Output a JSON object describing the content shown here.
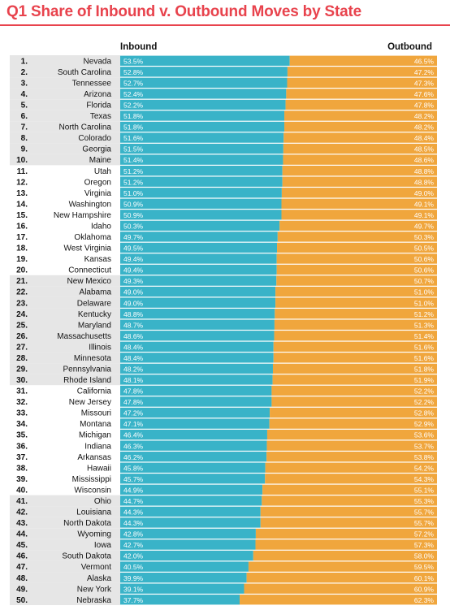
{
  "title": "Q1 Share of Inbound v. Outbound Moves by State",
  "colors": {
    "title": "#e8434d",
    "inbound": "#39b3c8",
    "outbound": "#f0a63d",
    "band": "#e6e6e6"
  },
  "chart_data": {
    "type": "bar",
    "title": "Q1 Share of Inbound v. Outbound Moves by State",
    "orientation": "horizontal-stacked",
    "xlim": [
      0,
      100
    ],
    "legend": "top",
    "series": [
      {
        "name": "Inbound"
      },
      {
        "name": "Outbound"
      }
    ],
    "rows": [
      {
        "rank": "1.",
        "state": "Nevada",
        "inbound": 53.5,
        "outbound": 46.5
      },
      {
        "rank": "2.",
        "state": "South Carolina",
        "inbound": 52.8,
        "outbound": 47.2
      },
      {
        "rank": "3.",
        "state": "Tennessee",
        "inbound": 52.7,
        "outbound": 47.3
      },
      {
        "rank": "4.",
        "state": "Arizona",
        "inbound": 52.4,
        "outbound": 47.6
      },
      {
        "rank": "5.",
        "state": "Florida",
        "inbound": 52.2,
        "outbound": 47.8
      },
      {
        "rank": "6.",
        "state": "Texas",
        "inbound": 51.8,
        "outbound": 48.2
      },
      {
        "rank": "7.",
        "state": "North Carolina",
        "inbound": 51.8,
        "outbound": 48.2
      },
      {
        "rank": "8.",
        "state": "Colorado",
        "inbound": 51.6,
        "outbound": 48.4
      },
      {
        "rank": "9.",
        "state": "Georgia",
        "inbound": 51.5,
        "outbound": 48.5
      },
      {
        "rank": "10.",
        "state": "Maine",
        "inbound": 51.4,
        "outbound": 48.6
      },
      {
        "rank": "11.",
        "state": "Utah",
        "inbound": 51.2,
        "outbound": 48.8
      },
      {
        "rank": "12.",
        "state": "Oregon",
        "inbound": 51.2,
        "outbound": 48.8
      },
      {
        "rank": "13.",
        "state": "Virginia",
        "inbound": 51.0,
        "outbound": 49.0
      },
      {
        "rank": "14.",
        "state": "Washington",
        "inbound": 50.9,
        "outbound": 49.1
      },
      {
        "rank": "15.",
        "state": "New Hampshire",
        "inbound": 50.9,
        "outbound": 49.1
      },
      {
        "rank": "16.",
        "state": "Idaho",
        "inbound": 50.3,
        "outbound": 49.7
      },
      {
        "rank": "17.",
        "state": "Oklahoma",
        "inbound": 49.7,
        "outbound": 50.3
      },
      {
        "rank": "18.",
        "state": "West Virginia",
        "inbound": 49.5,
        "outbound": 50.5
      },
      {
        "rank": "19.",
        "state": "Kansas",
        "inbound": 49.4,
        "outbound": 50.6
      },
      {
        "rank": "20.",
        "state": "Connecticut",
        "inbound": 49.4,
        "outbound": 50.6
      },
      {
        "rank": "21.",
        "state": "New Mexico",
        "inbound": 49.3,
        "outbound": 50.7
      },
      {
        "rank": "22.",
        "state": "Alabama",
        "inbound": 49.0,
        "outbound": 51.0
      },
      {
        "rank": "23.",
        "state": "Delaware",
        "inbound": 49.0,
        "outbound": 51.0
      },
      {
        "rank": "24.",
        "state": "Kentucky",
        "inbound": 48.8,
        "outbound": 51.2
      },
      {
        "rank": "25.",
        "state": "Maryland",
        "inbound": 48.7,
        "outbound": 51.3
      },
      {
        "rank": "26.",
        "state": "Massachusetts",
        "inbound": 48.6,
        "outbound": 51.4
      },
      {
        "rank": "27.",
        "state": "Illinois",
        "inbound": 48.4,
        "outbound": 51.6
      },
      {
        "rank": "28.",
        "state": "Minnesota",
        "inbound": 48.4,
        "outbound": 51.6
      },
      {
        "rank": "29.",
        "state": "Pennsylvania",
        "inbound": 48.2,
        "outbound": 51.8
      },
      {
        "rank": "30.",
        "state": "Rhode Island",
        "inbound": 48.1,
        "outbound": 51.9
      },
      {
        "rank": "31.",
        "state": "California",
        "inbound": 47.8,
        "outbound": 52.2
      },
      {
        "rank": "32.",
        "state": "New Jersey",
        "inbound": 47.8,
        "outbound": 52.2
      },
      {
        "rank": "33.",
        "state": "Missouri",
        "inbound": 47.2,
        "outbound": 52.8
      },
      {
        "rank": "34.",
        "state": "Montana",
        "inbound": 47.1,
        "outbound": 52.9
      },
      {
        "rank": "35.",
        "state": "Michigan",
        "inbound": 46.4,
        "outbound": 53.6
      },
      {
        "rank": "36.",
        "state": "Indiana",
        "inbound": 46.3,
        "outbound": 53.7
      },
      {
        "rank": "37.",
        "state": "Arkansas",
        "inbound": 46.2,
        "outbound": 53.8
      },
      {
        "rank": "38.",
        "state": "Hawaii",
        "inbound": 45.8,
        "outbound": 54.2
      },
      {
        "rank": "39.",
        "state": "Mississippi",
        "inbound": 45.7,
        "outbound": 54.3
      },
      {
        "rank": "40.",
        "state": "Wisconsin",
        "inbound": 44.9,
        "outbound": 55.1
      },
      {
        "rank": "41.",
        "state": "Ohio",
        "inbound": 44.7,
        "outbound": 55.3
      },
      {
        "rank": "42.",
        "state": "Louisiana",
        "inbound": 44.3,
        "outbound": 55.7
      },
      {
        "rank": "43.",
        "state": "North Dakota",
        "inbound": 44.3,
        "outbound": 55.7
      },
      {
        "rank": "44.",
        "state": "Wyoming",
        "inbound": 42.8,
        "outbound": 57.2
      },
      {
        "rank": "45.",
        "state": "Iowa",
        "inbound": 42.7,
        "outbound": 57.3
      },
      {
        "rank": "46.",
        "state": "South Dakota",
        "inbound": 42.0,
        "outbound": 58.0
      },
      {
        "rank": "47.",
        "state": "Vermont",
        "inbound": 40.5,
        "outbound": 59.5
      },
      {
        "rank": "48.",
        "state": "Alaska",
        "inbound": 39.9,
        "outbound": 60.1
      },
      {
        "rank": "49.",
        "state": "New York",
        "inbound": 39.1,
        "outbound": 60.9
      },
      {
        "rank": "50.",
        "state": "Nebraska",
        "inbound": 37.7,
        "outbound": 62.3
      }
    ]
  }
}
